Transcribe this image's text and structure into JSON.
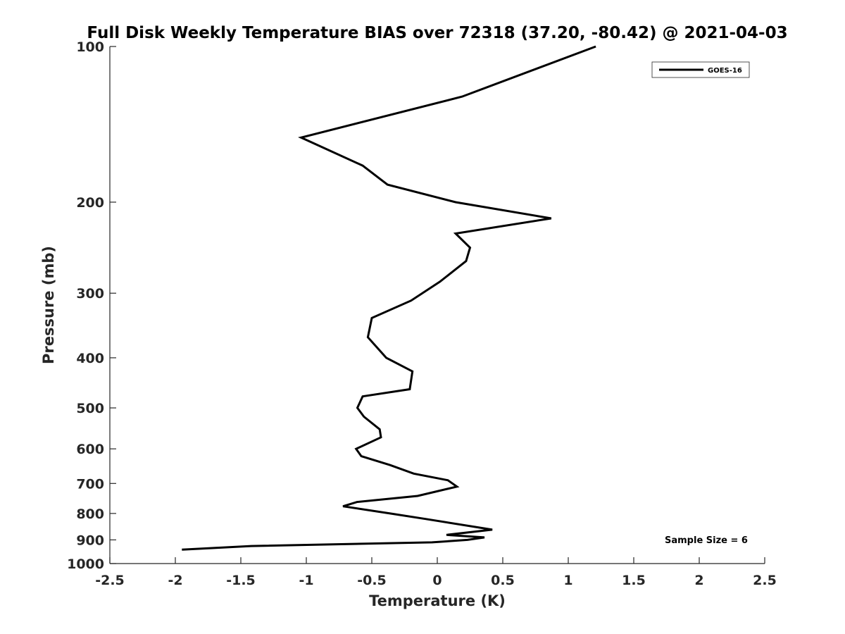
{
  "chart_data": {
    "type": "line",
    "title": "Full Disk Weekly Temperature BIAS over 72318 (37.20, -80.42) @ 2021-04-03",
    "xlabel": "Temperature (K)",
    "ylabel": "Pressure (mb)",
    "xlim": [
      -2.5,
      2.5
    ],
    "ylim": [
      1000,
      100
    ],
    "y_scale": "log",
    "y_reversed": true,
    "x_ticks": [
      -2.5,
      -2,
      -1.5,
      -1,
      -0.5,
      0,
      0.5,
      1,
      1.5,
      2,
      2.5
    ],
    "x_tick_labels": [
      "-2.5",
      "-2",
      "-1.5",
      "-1",
      "-0.5",
      "0",
      "0.5",
      "1",
      "1.5",
      "2",
      "2.5"
    ],
    "y_ticks": [
      100,
      200,
      300,
      400,
      500,
      600,
      700,
      800,
      900,
      1000
    ],
    "y_tick_labels": [
      "100",
      "200",
      "300",
      "400",
      "500",
      "600",
      "700",
      "800",
      "900",
      "1000"
    ],
    "grid": false,
    "legend_position": "top-right",
    "annotation": "Sample Size = 6",
    "series": [
      {
        "name": "GOES-16",
        "color": "#000000",
        "x": [
          1.21,
          0.19,
          -1.04,
          -0.57,
          -0.38,
          0.14,
          0.87,
          0.14,
          0.25,
          0.22,
          0.02,
          -0.2,
          -0.5,
          -0.53,
          -0.39,
          -0.19,
          -0.21,
          -0.57,
          -0.61,
          -0.56,
          -0.44,
          -0.43,
          -0.62,
          -0.58,
          -0.36,
          -0.18,
          0.08,
          0.15,
          -0.15,
          -0.61,
          -0.72,
          -0.36,
          -0.09,
          0.42,
          0.07,
          0.36,
          0.23,
          -0.04,
          -1.42,
          -1.95
        ],
        "y": [
          100,
          125,
          150,
          170,
          185,
          200,
          215,
          230,
          245,
          260,
          285,
          310,
          335,
          365,
          400,
          425,
          460,
          475,
          500,
          520,
          550,
          570,
          600,
          620,
          645,
          670,
          690,
          710,
          740,
          760,
          775,
          800,
          820,
          860,
          880,
          890,
          900,
          910,
          925,
          940
        ]
      }
    ]
  }
}
